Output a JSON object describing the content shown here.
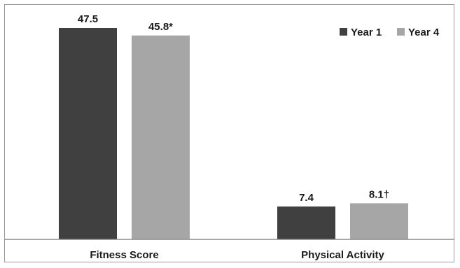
{
  "chart_data": {
    "type": "bar",
    "categories": [
      "Fitness Score",
      "Physical Activity"
    ],
    "series": [
      {
        "name": "Year 1",
        "values": [
          47.5,
          7.4
        ],
        "labels": [
          "47.5",
          "7.4"
        ],
        "color": "#404040"
      },
      {
        "name": "Year 4",
        "values": [
          45.8,
          8.1
        ],
        "labels": [
          "45.8*",
          "8.1†"
        ],
        "color": "#a6a6a6"
      }
    ],
    "ylim": [
      0,
      50
    ],
    "grid": false,
    "legend_position": "top-right",
    "axis_color": "#8c8c8c"
  }
}
